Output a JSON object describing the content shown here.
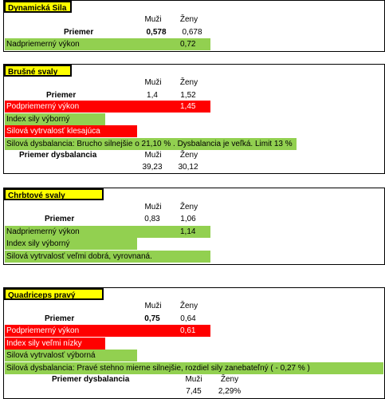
{
  "headers": {
    "men": "Muži",
    "women": "Ženy"
  },
  "sections": [
    {
      "title": "Dynamická Sila",
      "avg_label": "Priemer",
      "men": "0,578",
      "women": "0,678",
      "rows": [
        {
          "label": "Nadpriemerný výkon",
          "women_value": "0,72"
        }
      ]
    },
    {
      "title": "Brušné svaly",
      "avg_label": "Priemer",
      "men": "1,4",
      "women": "1,52",
      "rows": [
        {
          "label": "Podpriemerný výkon",
          "women_value": "1,45"
        },
        {
          "label": "Index sily výborný"
        },
        {
          "label": "Silová vytrvalosť klesajúca"
        },
        {
          "label": "Silová dysbalancia: Brucho silnejšie o 21,10  % . Dysbalancia je veľká. Limit 13 %"
        }
      ],
      "dysb_label": "Priemer  dysbalancia",
      "dysb_men": "39,23",
      "dysb_women": "30,12"
    },
    {
      "title": "Chrbtové svaly",
      "avg_label": "Priemer",
      "men": "0,83",
      "women": "1,06",
      "rows": [
        {
          "label": "Nadpriemerný výkon",
          "women_value": "1,14"
        },
        {
          "label": "Index sily  výborný"
        },
        {
          "label": "Silová vytrvalosť veľmi dobrá, vyrovnaná."
        }
      ]
    },
    {
      "title": "Quadriceps pravý",
      "avg_label": "Priemer",
      "men": "0,75",
      "women": "0,64",
      "rows": [
        {
          "label": "Podpriemerný výkon",
          "women_value": "0,61"
        },
        {
          "label": "Index sily  veľmi nízky"
        },
        {
          "label": "Silová vytrvalosť výborná"
        },
        {
          "label": "Silová dysbalancia: Pravé stehno mierne silnejšie, rozdiel sily zanebateľný ( - 0,27 % )"
        }
      ],
      "dysb_label": "Priemer  dysbalancia",
      "dysb_men": "7,45",
      "dysb_women": "2,29%"
    }
  ]
}
